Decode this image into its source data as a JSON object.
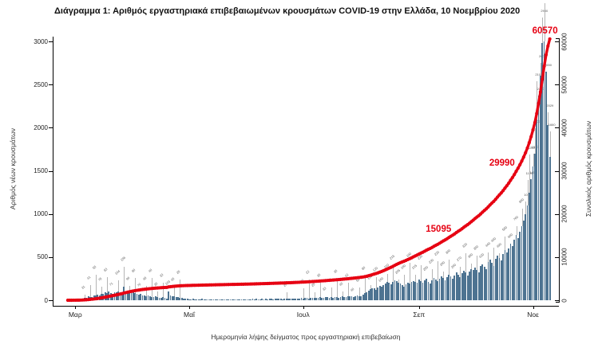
{
  "title": "Διάγραμμα 1: Αριθμός εργαστηριακά επιβεβαιωμένων κρουσμάτων COVID-19 στην Ελλάδα, 10 Νοεμβρίου 2020",
  "chart_data": {
    "type": "bar+line",
    "title": "Διάγραμμα 1: Αριθμός εργαστηριακά επιβεβαιωμένων κρουσμάτων COVID-19 στην Ελλάδα, 10 Νοεμβρίου 2020",
    "xlabel": "Ημερομηνία λήψης δείγματος προς εργαστηριακή επιβεβαίωση",
    "ylabel_left": "Αριθμός νέων κρουσμάτων",
    "ylabel_right": "Συνολικός αριθμός κρουσμάτων",
    "ylim_left": [
      0,
      3000
    ],
    "ylim_right": [
      0,
      60000
    ],
    "left_ticks": [
      0,
      500,
      1000,
      1500,
      2000,
      2500,
      3000
    ],
    "right_ticks": [
      0,
      10000,
      20000,
      30000,
      40000,
      50000,
      60000
    ],
    "x_ticks": [
      {
        "label": "Μαρ",
        "day": 4
      },
      {
        "label": "Μαΐ",
        "day": 65
      },
      {
        "label": "Ιουλ",
        "day": 126
      },
      {
        "label": "Σεπ",
        "day": 188
      },
      {
        "label": "Νοε",
        "day": 249
      }
    ],
    "start_date": "2020-02-26",
    "end_date": "2020-11-10",
    "series_bar_name": "daily_new_cases",
    "series_line_name": "cumulative_cases",
    "daily_new_cases": [
      1,
      2,
      3,
      3,
      4,
      6,
      9,
      10,
      21,
      31,
      28,
      45,
      41,
      36,
      51,
      55,
      67,
      60,
      78,
      71,
      95,
      83,
      99,
      86,
      71,
      96,
      88,
      104,
      92,
      85,
      156,
      90,
      101,
      96,
      88,
      92,
      80,
      71,
      65,
      70,
      60,
      52,
      48,
      55,
      45,
      40,
      38,
      42,
      35,
      30,
      28,
      33,
      25,
      22,
      103,
      56,
      50,
      45,
      40,
      35,
      28,
      25,
      20,
      18,
      15,
      12,
      10,
      15,
      8,
      10,
      12,
      9,
      14,
      11,
      8,
      10,
      13,
      9,
      7,
      12,
      10,
      8,
      11,
      9,
      10,
      12,
      8,
      10,
      9,
      11,
      7,
      10,
      12,
      9,
      8,
      10,
      10,
      12,
      9,
      14,
      11,
      15,
      13,
      10,
      16,
      12,
      14,
      11,
      18,
      15,
      12,
      16,
      14,
      19,
      15,
      13,
      17,
      20,
      16,
      14,
      18,
      22,
      19,
      16,
      20,
      24,
      20,
      24,
      28,
      22,
      26,
      30,
      25,
      32,
      28,
      35,
      30,
      26,
      33,
      38,
      30,
      36,
      32,
      40,
      35,
      30,
      38,
      45,
      40,
      36,
      42,
      50,
      45,
      40,
      48,
      55,
      50,
      50,
      65,
      80,
      95,
      110,
      125,
      140,
      135,
      120,
      150,
      170,
      160,
      175,
      190,
      210,
      200,
      185,
      215,
      235,
      225,
      205,
      195,
      175,
      160,
      185,
      200,
      190,
      210,
      225,
      215,
      200,
      240,
      220,
      200,
      230,
      250,
      210,
      190,
      230,
      260,
      240,
      220,
      250,
      280,
      260,
      230,
      270,
      300,
      280,
      250,
      290,
      320,
      300,
      270,
      310,
      340,
      320,
      290,
      330,
      360,
      350,
      380,
      350,
      320,
      400,
      420,
      390,
      360,
      440,
      470,
      430,
      400,
      480,
      520,
      490,
      460,
      540,
      580,
      550,
      600,
      660,
      630,
      700,
      760,
      720,
      790,
      860,
      920,
      1000,
      1100,
      1250,
      1400,
      1550,
      1700,
      2100,
      2370,
      2600,
      2980,
      3000,
      2650,
      2029,
      1660
    ],
    "cumulative_final": 60570,
    "line_annotations": [
      {
        "label": "15095",
        "value": 15095
      },
      {
        "label": "29990",
        "value": 29990
      },
      {
        "label": "60570",
        "value": 60570
      }
    ]
  },
  "colors": {
    "bar": "#4d7391",
    "line": "#e60012",
    "axis": "#000000",
    "bar_label": "#555555",
    "annotation": "#e60012"
  }
}
